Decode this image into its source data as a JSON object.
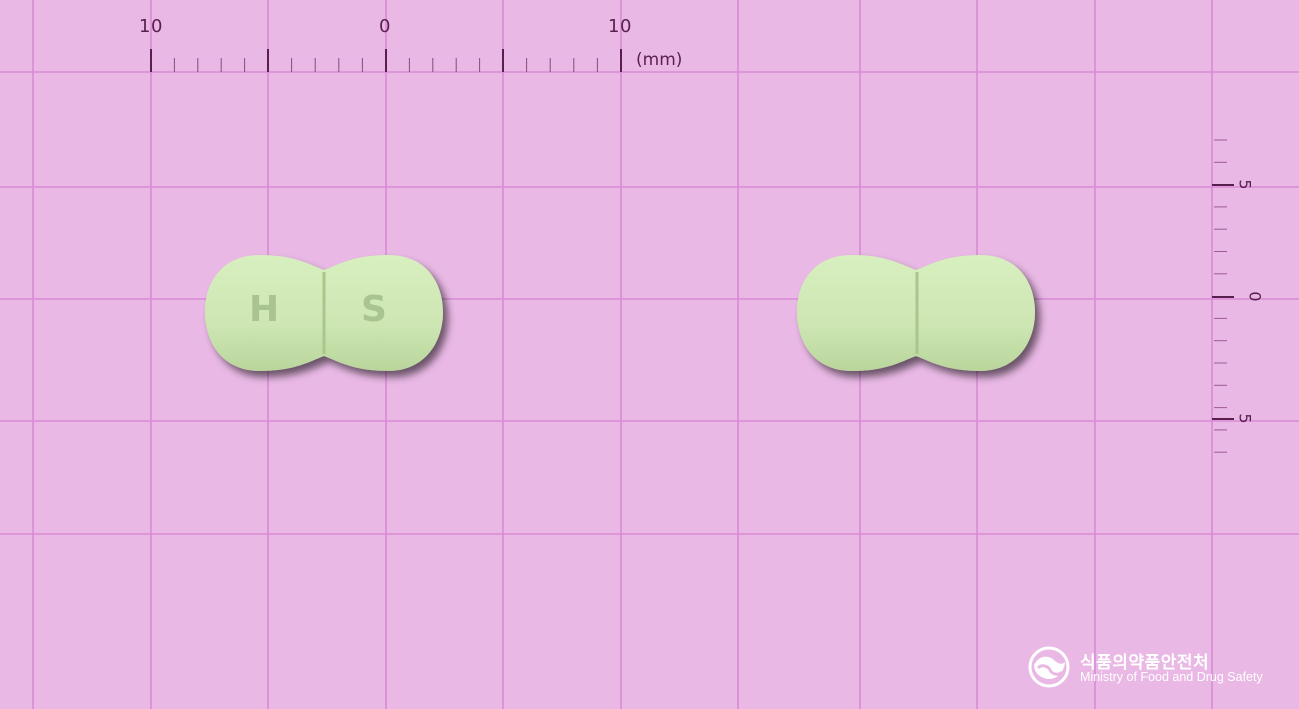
{
  "ruler_top": {
    "labels": [
      "10",
      "0",
      "10"
    ],
    "unit": "(mm)"
  },
  "ruler_right": {
    "labels": [
      "5",
      "0",
      "5"
    ]
  },
  "pills": {
    "front_imprint_left": "H",
    "front_imprint_right": "S",
    "color": "#cfe8b4"
  },
  "watermark": {
    "korean": "식품의약품안전처",
    "english": "Ministry of Food and Drug Safety"
  },
  "colors": {
    "background": "#e9b8e5",
    "grid": "#d98ad4",
    "ruler": "#5a1f4e"
  }
}
